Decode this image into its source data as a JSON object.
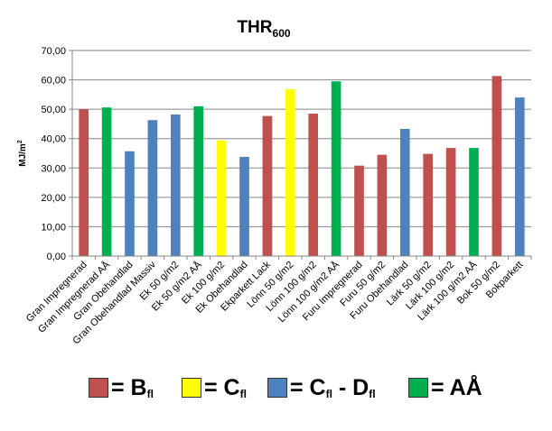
{
  "chart_data": {
    "type": "bar",
    "title": "THR",
    "title_subscript": "600",
    "xlabel": "",
    "ylabel": "MJ/m",
    "ylabel_superscript": "2",
    "ylim": [
      0,
      70
    ],
    "ytick_step": 10,
    "ytick_labels": [
      "0,00",
      "10,00",
      "20,00",
      "30,00",
      "40,00",
      "50,00",
      "60,00",
      "70,00"
    ],
    "grid": true,
    "colors": {
      "Bfl": "#c0504d",
      "Cfl": "#ffff00",
      "Cfl-Dfl": "#4f81bd",
      "AA": "#00b050"
    },
    "categories": [
      "Gran Impregnerad",
      "Gran Impregnerad AÅ",
      "Gran Obehandlad",
      "Gran Obehandlad Massiv",
      "Ek 50 g/m2",
      "Ek 50 g/m2 AÅ",
      "Ek 100 g/m2",
      "Ek Obehandlad",
      "Ekparkett Lack",
      "Lönn 50 g/m2",
      "Lönn 100 g/m2",
      "Lönn 100 g/m2 AÅ",
      "Furu Impregnerad",
      "Furu 50 g/m2",
      "Furu Obehandlad",
      "Lärk 50 g/m2",
      "Lärk 100 g/m2",
      "Lärk 100 g/m2 AÅ",
      "Bok 50 g/m2",
      "Bokparkett"
    ],
    "values": [
      50.0,
      50.6,
      35.7,
      46.3,
      48.2,
      51.0,
      39.4,
      33.8,
      47.7,
      56.8,
      48.5,
      59.5,
      30.8,
      34.5,
      43.3,
      34.8,
      36.8,
      36.8,
      61.3,
      54.0
    ],
    "bar_classes": [
      "Bfl",
      "AA",
      "Cfl-Dfl",
      "Cfl-Dfl",
      "Cfl-Dfl",
      "AA",
      "Cfl",
      "Cfl-Dfl",
      "Bfl",
      "Cfl",
      "Bfl",
      "AA",
      "Bfl",
      "Bfl",
      "Cfl-Dfl",
      "Bfl",
      "Bfl",
      "AA",
      "Bfl",
      "Cfl-Dfl"
    ]
  },
  "legend": {
    "items": [
      {
        "key": "Bfl",
        "prefix": "= B",
        "sub": "fl",
        "middle": "",
        "sub2": "",
        "suffix": ""
      },
      {
        "key": "Cfl",
        "prefix": "= C",
        "sub": "fl",
        "middle": "",
        "sub2": "",
        "suffix": ""
      },
      {
        "key": "Cfl-Dfl",
        "prefix": "= C",
        "sub": "fl",
        "middle": " - D",
        "sub2": "fl",
        "suffix": ""
      },
      {
        "key": "AA",
        "prefix": "= AÅ",
        "sub": "",
        "middle": "",
        "sub2": "",
        "suffix": ""
      }
    ]
  }
}
